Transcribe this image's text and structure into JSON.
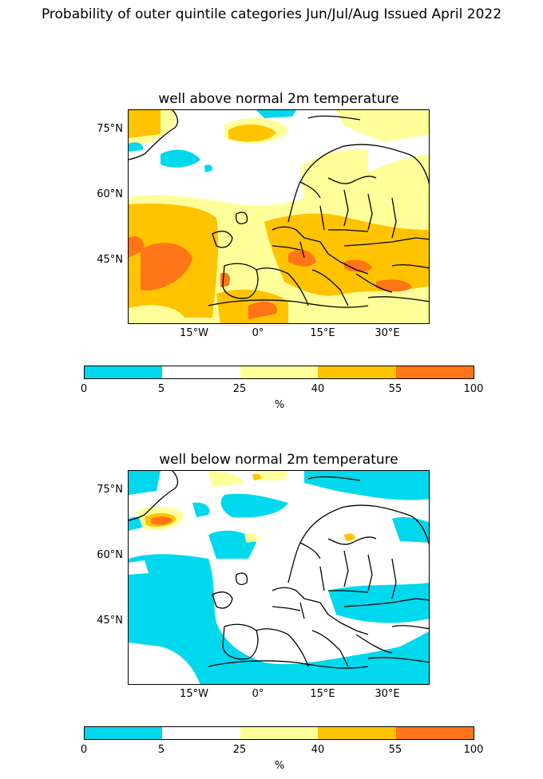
{
  "title": "Probability of outer quintile categories Jun/Jul/Aug Issued April 2022",
  "lat_labels": [
    "75°N",
    "60°N",
    "45°N"
  ],
  "lon_labels": [
    "15°W",
    "0°",
    "15°E",
    "30°E"
  ],
  "colorbar": {
    "bounds": [
      "0",
      "5",
      "25",
      "40",
      "55",
      "100"
    ],
    "colors": [
      "#00d8ed",
      "#ffffff",
      "#ffff99",
      "#ffc300",
      "#ff7518"
    ],
    "unit": "%"
  },
  "maps": [
    {
      "title": "well above normal 2m temperature"
    },
    {
      "title": "well below normal 2m temperature"
    }
  ]
}
